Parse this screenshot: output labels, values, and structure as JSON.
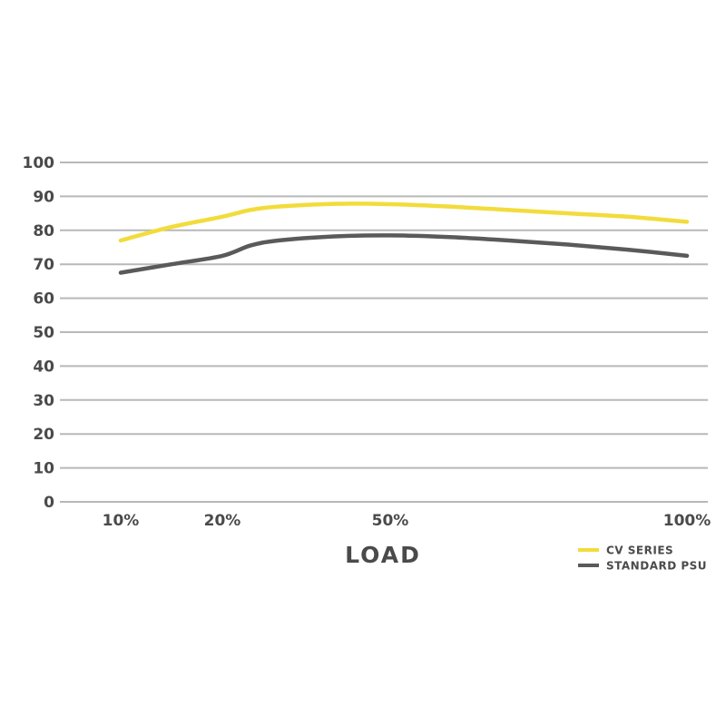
{
  "chart_data": {
    "type": "line",
    "xlabel": "LOAD",
    "ylabel": "",
    "title": "",
    "ylim": [
      0,
      100
    ],
    "yticks": [
      0,
      10,
      20,
      30,
      40,
      50,
      60,
      70,
      80,
      90,
      100
    ],
    "x_tick_labels": [
      {
        "x": 10,
        "label": "10%"
      },
      {
        "x": 20,
        "label": "20%"
      },
      {
        "x": 50,
        "label": "50%"
      },
      {
        "x": 100,
        "label": "100%"
      }
    ],
    "xlim": [
      10,
      100
    ],
    "grid": true,
    "legend_position": "bottom-right",
    "series": [
      {
        "name": "CV SERIES",
        "color": "#f2dc3c",
        "x": [
          10,
          15,
          20,
          25,
          30,
          40,
          50,
          60,
          70,
          80,
          90,
          100
        ],
        "y": [
          77,
          81,
          84,
          86,
          87,
          87.8,
          87.7,
          87,
          86,
          85,
          84,
          82.5
        ]
      },
      {
        "name": "STANDARD PSU",
        "color": "#5a5a5a",
        "x": [
          10,
          15,
          20,
          25,
          30,
          40,
          50,
          60,
          70,
          80,
          90,
          100
        ],
        "y": [
          67.5,
          70,
          72.5,
          75.5,
          77,
          78.2,
          78.5,
          78,
          77,
          75.8,
          74.3,
          72.5
        ]
      }
    ]
  }
}
